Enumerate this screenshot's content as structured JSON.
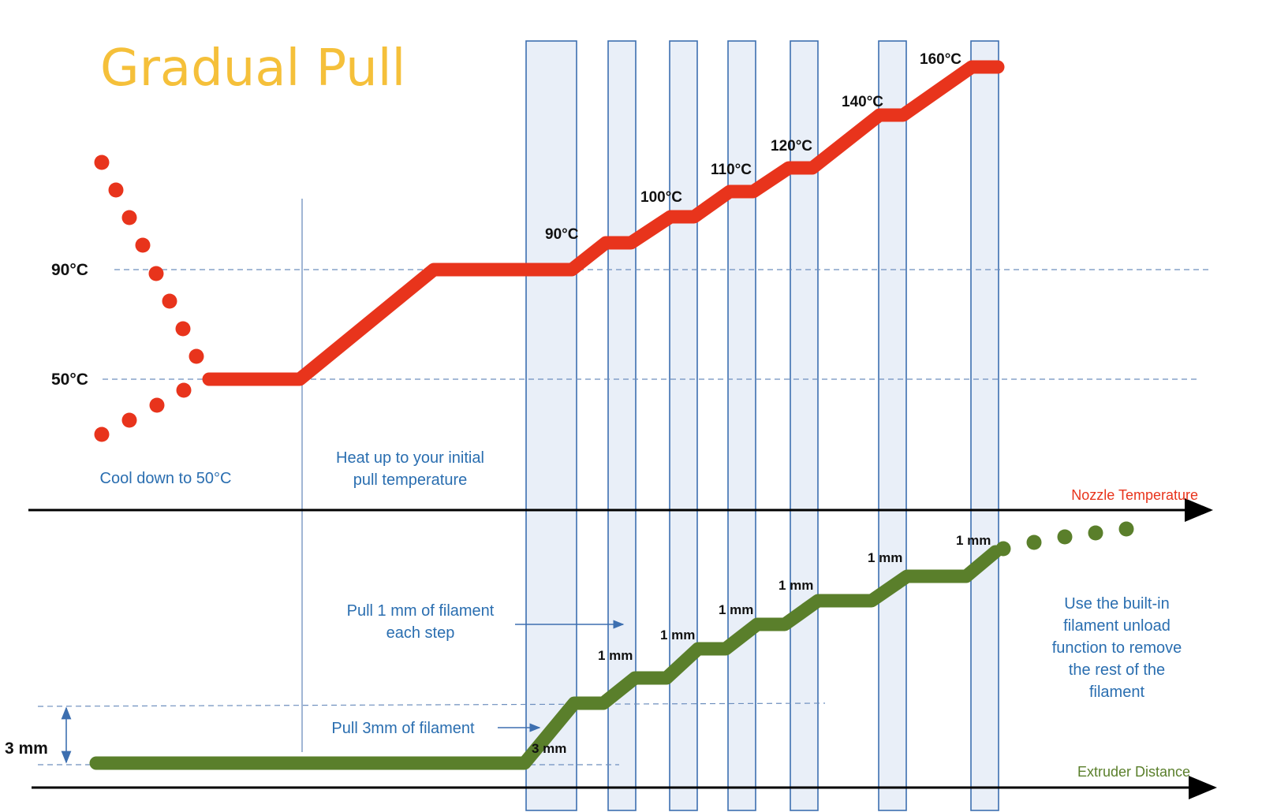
{
  "title": "Gradual Pull",
  "y_labels": {
    "t90": "90°C",
    "t50": "50°C",
    "dist3": "3 mm"
  },
  "temperature_steps": [
    "90°C",
    "100°C",
    "110°C",
    "120°C",
    "140°C",
    "160°C"
  ],
  "distance_steps": [
    "3 mm",
    "1 mm",
    "1 mm",
    "1 mm",
    "1 mm",
    "1 mm",
    "1 mm"
  ],
  "notes": {
    "cool_down": "Cool down to 50°C",
    "heat_up_line1": "Heat up to your initial",
    "heat_up_line2": "pull temperature",
    "pull_step_line1": "Pull 1 mm of filament",
    "pull_step_line2": "each step",
    "pull_3mm": "Pull 3mm of filament",
    "unload_line1": "Use the built-in",
    "unload_line2": "filament unload",
    "unload_line3": "function to remove",
    "unload_line4": "the rest of the",
    "unload_line5": "filament"
  },
  "axes": {
    "top": "Nozzle Temperature",
    "bottom": "Extruder Distance"
  },
  "colors": {
    "temperature": "#E8341C",
    "distance": "#5A7F2B",
    "title": "#F5C03A",
    "note": "#2A6EB0",
    "band": "#E9EFF8"
  }
}
